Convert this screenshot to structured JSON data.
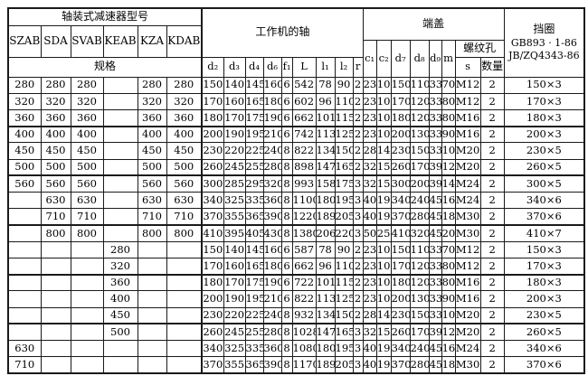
{
  "colors": {
    "background": "#ffffff",
    "border": "#1a1a1a",
    "text": "#000000"
  },
  "header": {
    "model_group_title": "轴装式减速器型号",
    "models": [
      "SZAB",
      "SDA",
      "SVAB",
      "KEAB",
      "KZA",
      "KDAB"
    ],
    "spec_label": "规格",
    "shaft_group_title": "工作机的轴",
    "shaft_cols": [
      "d₂",
      "d₃",
      "d₄",
      "d₆",
      "f₁",
      "L",
      "l₁",
      "l₂",
      "r"
    ],
    "endcover_group_title": "端盖",
    "endcover_cols": [
      "c₁",
      "c₂",
      "d₇",
      "d₈",
      "d₉",
      "m"
    ],
    "thread_group_title": "螺纹孔",
    "thread_cols": [
      "s",
      "数量"
    ],
    "ring_title": "挡圈",
    "ring_std1": "GB893 · 1-86",
    "ring_std2": "JB/ZQ4343-86"
  },
  "rows": [
    {
      "models": [
        "280",
        "280",
        "280",
        "",
        "280",
        "280"
      ],
      "shaft": [
        "150",
        "140",
        "145",
        "160",
        "6",
        "542",
        "78",
        "90",
        "2"
      ],
      "endcover": [
        "23",
        "10",
        "150",
        "110",
        "33",
        "70"
      ],
      "thread": [
        "M12",
        "2"
      ],
      "ring": "150×3",
      "group_end": false
    },
    {
      "models": [
        "320",
        "320",
        "320",
        "",
        "320",
        "320"
      ],
      "shaft": [
        "170",
        "160",
        "165",
        "180",
        "6",
        "602",
        "96",
        "110",
        "2"
      ],
      "endcover": [
        "23",
        "10",
        "170",
        "120",
        "33",
        "80"
      ],
      "thread": [
        "M12",
        "2"
      ],
      "ring": "170×3",
      "group_end": false
    },
    {
      "models": [
        "360",
        "360",
        "360",
        "",
        "360",
        "360"
      ],
      "shaft": [
        "180",
        "170",
        "175",
        "190",
        "6",
        "662",
        "101",
        "115",
        "2"
      ],
      "endcover": [
        "23",
        "10",
        "180",
        "120",
        "33",
        "80"
      ],
      "thread": [
        "M16",
        "2"
      ],
      "ring": "180×3",
      "group_end": true
    },
    {
      "models": [
        "400",
        "400",
        "400",
        "",
        "400",
        "400"
      ],
      "shaft": [
        "200",
        "190",
        "195",
        "210",
        "6",
        "742",
        "113",
        "125",
        "2"
      ],
      "endcover": [
        "23",
        "10",
        "200",
        "130",
        "33",
        "90"
      ],
      "thread": [
        "M16",
        "2"
      ],
      "ring": "200×3",
      "group_end": false
    },
    {
      "models": [
        "450",
        "450",
        "450",
        "",
        "450",
        "450"
      ],
      "shaft": [
        "230",
        "220",
        "225",
        "240",
        "8",
        "822",
        "134",
        "150",
        "2"
      ],
      "endcover": [
        "28",
        "14",
        "230",
        "150",
        "33",
        "100"
      ],
      "thread": [
        "M20",
        "2"
      ],
      "ring": "230×5",
      "group_end": false
    },
    {
      "models": [
        "500",
        "500",
        "500",
        "",
        "500",
        "500"
      ],
      "shaft": [
        "260",
        "245",
        "255",
        "280",
        "8",
        "898",
        "147",
        "165",
        "2"
      ],
      "endcover": [
        "32",
        "15",
        "260",
        "170",
        "39",
        "120"
      ],
      "thread": [
        "M20",
        "2"
      ],
      "ring": "260×5",
      "group_end": true
    },
    {
      "models": [
        "560",
        "560",
        "560",
        "",
        "560",
        "560"
      ],
      "shaft": [
        "300",
        "285",
        "295",
        "320",
        "8",
        "993",
        "158",
        "175",
        "3"
      ],
      "endcover": [
        "32",
        "15",
        "300",
        "200",
        "39",
        "140"
      ],
      "thread": [
        "M24",
        "2"
      ],
      "ring": "300×5",
      "group_end": false
    },
    {
      "models": [
        "",
        "630",
        "630",
        "",
        "630",
        "630"
      ],
      "shaft": [
        "340",
        "325",
        "335",
        "360",
        "8",
        "1100",
        "180",
        "195",
        "3"
      ],
      "endcover": [
        "40",
        "19",
        "340",
        "240",
        "45",
        "160"
      ],
      "thread": [
        "M24",
        "2"
      ],
      "ring": "340×6",
      "group_end": false
    },
    {
      "models": [
        "",
        "710",
        "710",
        "",
        "710",
        "710"
      ],
      "shaft": [
        "370",
        "355",
        "365",
        "390",
        "8",
        "1220",
        "189",
        "205",
        "3"
      ],
      "endcover": [
        "40",
        "19",
        "370",
        "280",
        "45",
        "180"
      ],
      "thread": [
        "M30",
        "2"
      ],
      "ring": "370×6",
      "group_end": true
    },
    {
      "models": [
        "",
        "800",
        "800",
        "",
        "800",
        "800"
      ],
      "shaft": [
        "410",
        "395",
        "405",
        "430",
        "8",
        "1380",
        "206",
        "220",
        "3"
      ],
      "endcover": [
        "50",
        "25",
        "410",
        "320",
        "45",
        "200"
      ],
      "thread": [
        "M30",
        "2"
      ],
      "ring": "410×7",
      "group_end": false
    },
    {
      "models": [
        "",
        "",
        "",
        "280",
        "",
        ""
      ],
      "shaft": [
        "150",
        "140",
        "145",
        "160",
        "6",
        "587",
        "78",
        "90",
        "2"
      ],
      "endcover": [
        "23",
        "10",
        "150",
        "110",
        "33",
        "70"
      ],
      "thread": [
        "M12",
        "2"
      ],
      "ring": "150×3",
      "group_end": false
    },
    {
      "models": [
        "",
        "",
        "",
        "320",
        "",
        ""
      ],
      "shaft": [
        "170",
        "160",
        "165",
        "180",
        "6",
        "662",
        "96",
        "110",
        "2"
      ],
      "endcover": [
        "23",
        "10",
        "170",
        "120",
        "33",
        "80"
      ],
      "thread": [
        "M12",
        "2"
      ],
      "ring": "170×3",
      "group_end": true
    },
    {
      "models": [
        "",
        "",
        "",
        "360",
        "",
        ""
      ],
      "shaft": [
        "180",
        "170",
        "175",
        "190",
        "6",
        "722",
        "101",
        "115",
        "2"
      ],
      "endcover": [
        "23",
        "10",
        "180",
        "120",
        "33",
        "80"
      ],
      "thread": [
        "M16",
        "2"
      ],
      "ring": "180×3",
      "group_end": false
    },
    {
      "models": [
        "",
        "",
        "",
        "400",
        "",
        ""
      ],
      "shaft": [
        "200",
        "190",
        "195",
        "210",
        "6",
        "822",
        "113",
        "125",
        "2"
      ],
      "endcover": [
        "23",
        "10",
        "200",
        "130",
        "33",
        "90"
      ],
      "thread": [
        "M16",
        "2"
      ],
      "ring": "200×3",
      "group_end": false
    },
    {
      "models": [
        "",
        "",
        "",
        "450",
        "",
        ""
      ],
      "shaft": [
        "230",
        "220",
        "225",
        "240",
        "8",
        "932",
        "134",
        "150",
        "2"
      ],
      "endcover": [
        "28",
        "14",
        "230",
        "150",
        "33",
        "100"
      ],
      "thread": [
        "M20",
        "2"
      ],
      "ring": "230×5",
      "group_end": true
    },
    {
      "models": [
        "",
        "",
        "",
        "500",
        "",
        ""
      ],
      "shaft": [
        "260",
        "245",
        "255",
        "280",
        "8",
        "1028",
        "147",
        "165",
        "3"
      ],
      "endcover": [
        "32",
        "15",
        "260",
        "170",
        "39",
        "120"
      ],
      "thread": [
        "M20",
        "2"
      ],
      "ring": "260×5",
      "group_end": false
    },
    {
      "models": [
        "630",
        "",
        "",
        "",
        "",
        ""
      ],
      "shaft": [
        "340",
        "325",
        "335",
        "360",
        "8",
        "1080",
        "180",
        "195",
        "3"
      ],
      "endcover": [
        "40",
        "19",
        "340",
        "240",
        "45",
        "160"
      ],
      "thread": [
        "M24",
        "2"
      ],
      "ring": "340×6",
      "group_end": false
    },
    {
      "models": [
        "710",
        "",
        "",
        "",
        "",
        ""
      ],
      "shaft": [
        "370",
        "355",
        "365",
        "390",
        "8",
        "1170",
        "189",
        "205",
        "3"
      ],
      "endcover": [
        "40",
        "19",
        "370",
        "280",
        "45",
        "180"
      ],
      "thread": [
        "M30",
        "2"
      ],
      "ring": "370×6",
      "group_end": false
    }
  ]
}
